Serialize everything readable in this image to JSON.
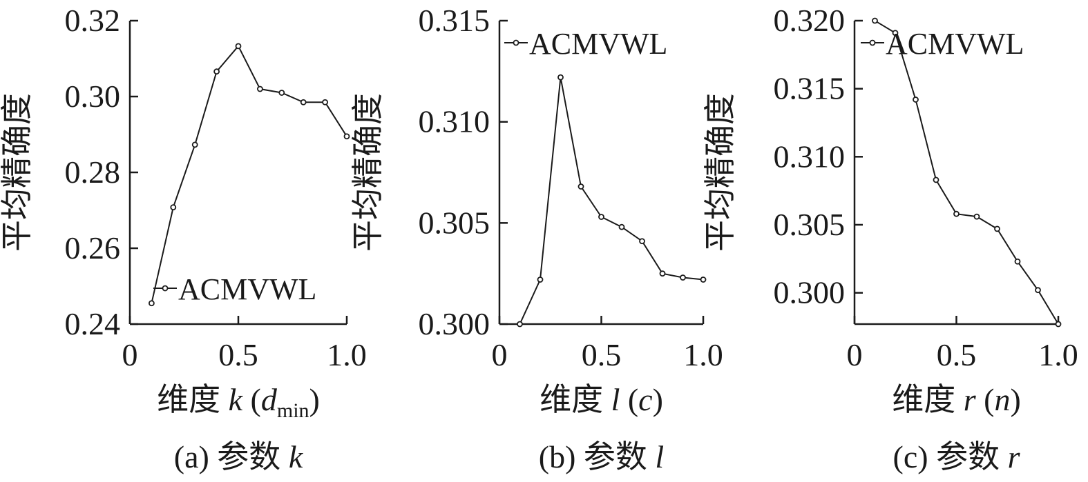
{
  "chart_data": [
    {
      "type": "line",
      "caption": {
        "prefix": "(a) 参数 ",
        "var": "k"
      },
      "xlabel": {
        "prefix": "维度 ",
        "var": "k",
        "open": " (",
        "sub_var": "d",
        "sub": "min",
        "close": ")"
      },
      "ylabel": "平均精确度",
      "xlim": [
        0,
        1.0
      ],
      "ylim": [
        0.24,
        0.32
      ],
      "xticks": [
        0,
        0.5,
        1.0
      ],
      "xtick_labels": [
        "0",
        "0.5",
        "1.0"
      ],
      "yticks": [
        0.24,
        0.26,
        0.28,
        0.3,
        0.32
      ],
      "ytick_labels": [
        "0.24",
        "0.26",
        "0.28",
        "0.30",
        "0.32"
      ],
      "legend": "ACMVWL",
      "legend_position": "bottom-left",
      "series": [
        {
          "name": "ACMVWL",
          "x": [
            0.1,
            0.2,
            0.3,
            0.4,
            0.5,
            0.6,
            0.7,
            0.8,
            0.9,
            1.0
          ],
          "y": [
            0.2455,
            0.2708,
            0.2873,
            0.3066,
            0.3133,
            0.302,
            0.301,
            0.2985,
            0.2985,
            0.2895
          ]
        }
      ]
    },
    {
      "type": "line",
      "caption": {
        "prefix": "(b) 参数 ",
        "var": "l"
      },
      "xlabel": {
        "prefix": "维度 ",
        "var": "l",
        "open": " (",
        "sub_var": "c",
        "sub": "",
        "close": ")"
      },
      "ylabel": "平均精确度",
      "xlim": [
        0,
        1.0
      ],
      "ylim": [
        0.3,
        0.315
      ],
      "xticks": [
        0,
        0.5,
        1.0
      ],
      "xtick_labels": [
        "0",
        "0.5",
        "1.0"
      ],
      "yticks": [
        0.3,
        0.305,
        0.31,
        0.315
      ],
      "ytick_labels": [
        "0.300",
        "0.305",
        "0.310",
        "0.315"
      ],
      "legend": "ACMVWL",
      "legend_position": "top-left",
      "series": [
        {
          "name": "ACMVWL",
          "x": [
            0.1,
            0.2,
            0.3,
            0.4,
            0.5,
            0.6,
            0.7,
            0.8,
            0.9,
            1.0
          ],
          "y": [
            0.3,
            0.3022,
            0.3122,
            0.3068,
            0.3053,
            0.3048,
            0.3041,
            0.3025,
            0.3023,
            0.3022
          ]
        }
      ]
    },
    {
      "type": "line",
      "caption": {
        "prefix": "(c) 参数 ",
        "var": "r"
      },
      "xlabel": {
        "prefix": "维度 ",
        "var": "r",
        "open": " (",
        "sub_var": "n",
        "sub": "",
        "close": ")"
      },
      "ylabel": "平均精确度",
      "xlim": [
        0,
        1.0
      ],
      "ylim": [
        0.2977,
        0.32
      ],
      "xticks": [
        0,
        0.5,
        1.0
      ],
      "xtick_labels": [
        "0",
        "0.5",
        "1.0"
      ],
      "yticks": [
        0.3,
        0.305,
        0.31,
        0.315,
        0.32
      ],
      "ytick_labels": [
        "0.300",
        "0.305",
        "0.310",
        "0.315",
        "0.320"
      ],
      "legend": "ACMVWL",
      "legend_position": "top-left",
      "series": [
        {
          "name": "ACMVWL",
          "x": [
            0.1,
            0.2,
            0.3,
            0.4,
            0.5,
            0.6,
            0.7,
            0.8,
            0.9,
            1.0
          ],
          "y": [
            0.32,
            0.3191,
            0.3142,
            0.3083,
            0.3058,
            0.3056,
            0.3047,
            0.3023,
            0.3002,
            0.2977
          ]
        }
      ]
    }
  ]
}
